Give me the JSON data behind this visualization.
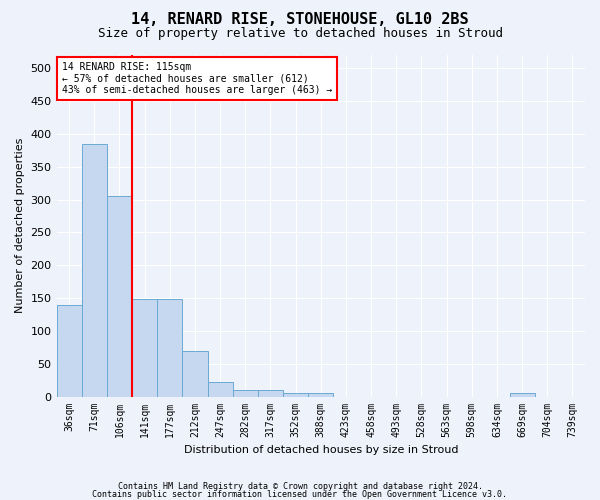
{
  "title1": "14, RENARD RISE, STONEHOUSE, GL10 2BS",
  "title2": "Size of property relative to detached houses in Stroud",
  "xlabel": "Distribution of detached houses by size in Stroud",
  "ylabel": "Number of detached properties",
  "bar_values": [
    140,
    385,
    305,
    148,
    148,
    70,
    22,
    10,
    10,
    5,
    5,
    0,
    0,
    0,
    0,
    0,
    0,
    0,
    5,
    0,
    0
  ],
  "bar_labels": [
    "36sqm",
    "71sqm",
    "106sqm",
    "141sqm",
    "177sqm",
    "212sqm",
    "247sqm",
    "282sqm",
    "317sqm",
    "352sqm",
    "388sqm",
    "423sqm",
    "458sqm",
    "493sqm",
    "528sqm",
    "563sqm",
    "598sqm",
    "634sqm",
    "669sqm",
    "704sqm",
    "739sqm"
  ],
  "bar_color": "#c5d8f0",
  "bar_edge_color": "#6aaad4",
  "red_line_bin": 2,
  "annotation_line1": "14 RENARD RISE: 115sqm",
  "annotation_line2": "← 57% of detached houses are smaller (612)",
  "annotation_line3": "43% of semi-detached houses are larger (463) →",
  "annotation_box_color": "white",
  "annotation_box_edge_color": "red",
  "ylim": [
    0,
    520
  ],
  "yticks": [
    0,
    50,
    100,
    150,
    200,
    250,
    300,
    350,
    400,
    450,
    500
  ],
  "footnote1": "Contains HM Land Registry data © Crown copyright and database right 2024.",
  "footnote2": "Contains public sector information licensed under the Open Government Licence v3.0.",
  "background_color": "#eef2fa",
  "grid_color": "white",
  "title1_fontsize": 11,
  "title2_fontsize": 9,
  "ylabel_fontsize": 8,
  "xlabel_fontsize": 8,
  "tick_fontsize": 7,
  "footnote_fontsize": 6
}
